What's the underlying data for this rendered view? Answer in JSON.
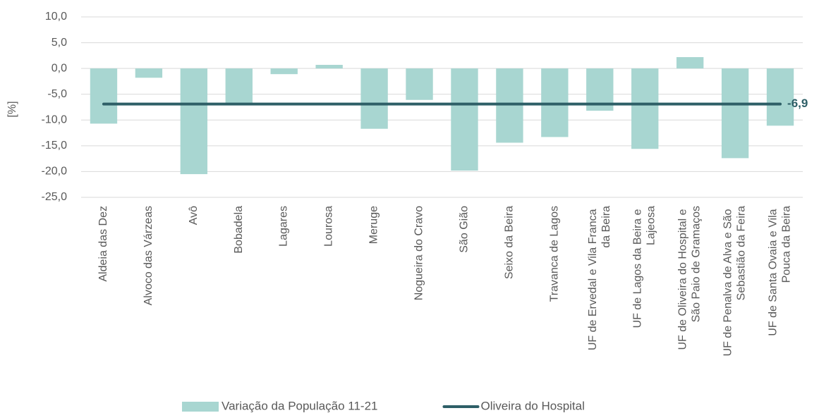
{
  "chart_data": {
    "type": "bar",
    "y_label": "[%]",
    "categories": [
      "Aldeia das Dez",
      "Alvoco das Várzeas",
      "Avô",
      "Bobadela",
      "Lagares",
      "Lourosa",
      "Meruge",
      "Nogueira do Cravo",
      "São Gião",
      "Seixo da Beira",
      "Travanca de Lagos",
      "UF de Ervedal e Vila Franca da Beira",
      "UF de Lagos da Beira e Lajeosa",
      "UF de Oliveira do Hospital e São Paio de Gramaços",
      "UF de Penalva de Alva e São Sebastião da Feira",
      "UF de Santa Ovaia e Vila Pouca da Beira"
    ],
    "series": [
      {
        "name": "Variação da População 11-21",
        "type": "bar",
        "color": "#a8d6d1",
        "values": [
          -10.7,
          -1.8,
          -20.5,
          -6.7,
          -1.1,
          0.7,
          -11.7,
          -6.1,
          -19.8,
          -14.4,
          -13.3,
          -8.2,
          -15.6,
          2.2,
          -17.4,
          -11.1
        ]
      },
      {
        "name": "Oliveira do Hospital",
        "type": "line",
        "color": "#2e5f67",
        "values": [
          -6.9,
          -6.9,
          -6.9,
          -6.9,
          -6.9,
          -6.9,
          -6.9,
          -6.9,
          -6.9,
          -6.9,
          -6.9,
          -6.9,
          -6.9,
          -6.9,
          -6.9,
          -6.9
        ],
        "value_labels": [
          null,
          null,
          null,
          null,
          null,
          null,
          null,
          null,
          null,
          null,
          null,
          null,
          null,
          null,
          null,
          "-6,9"
        ]
      }
    ],
    "ylim": [
      -25,
      10
    ],
    "yticks": [
      {
        "value": -25,
        "label": "-25,0"
      },
      {
        "value": -20,
        "label": "-20,0"
      },
      {
        "value": -15,
        "label": "-15,0"
      },
      {
        "value": -10,
        "label": "-10,0"
      },
      {
        "value": -5,
        "label": "-5,0"
      },
      {
        "value": 0,
        "label": "0,0"
      },
      {
        "value": 5,
        "label": "5,0"
      },
      {
        "value": 10,
        "label": "10,0"
      }
    ],
    "grid": true,
    "legend": "bottom"
  }
}
